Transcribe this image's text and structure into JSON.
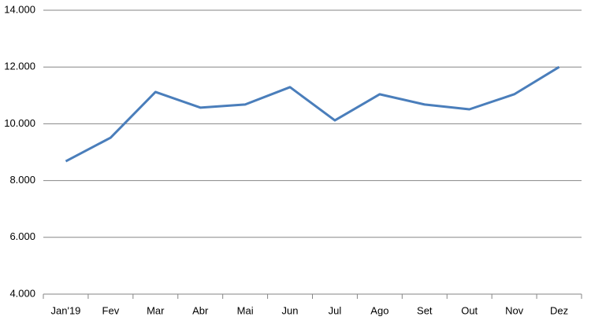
{
  "chart_data": {
    "type": "line",
    "categories": [
      "Jan'19",
      "Fev",
      "Mar",
      "Abr",
      "Mai",
      "Jun",
      "Jul",
      "Ago",
      "Set",
      "Out",
      "Nov",
      "Dez"
    ],
    "series": [
      {
        "color": "#4a7ebb",
        "values": [
          8680,
          9510,
          11120,
          10570,
          10680,
          11290,
          10120,
          11040,
          10680,
          10510,
          11040,
          12000
        ]
      }
    ],
    "ylim": [
      4000,
      14000
    ],
    "yticks": [
      {
        "value": 4000,
        "label": "4.000"
      },
      {
        "value": 6000,
        "label": "6.000"
      },
      {
        "value": 8000,
        "label": "8.000"
      },
      {
        "value": 10000,
        "label": "10.000"
      },
      {
        "value": 12000,
        "label": "12.000"
      },
      {
        "value": 14000,
        "label": "14.000"
      }
    ],
    "grid": true
  }
}
